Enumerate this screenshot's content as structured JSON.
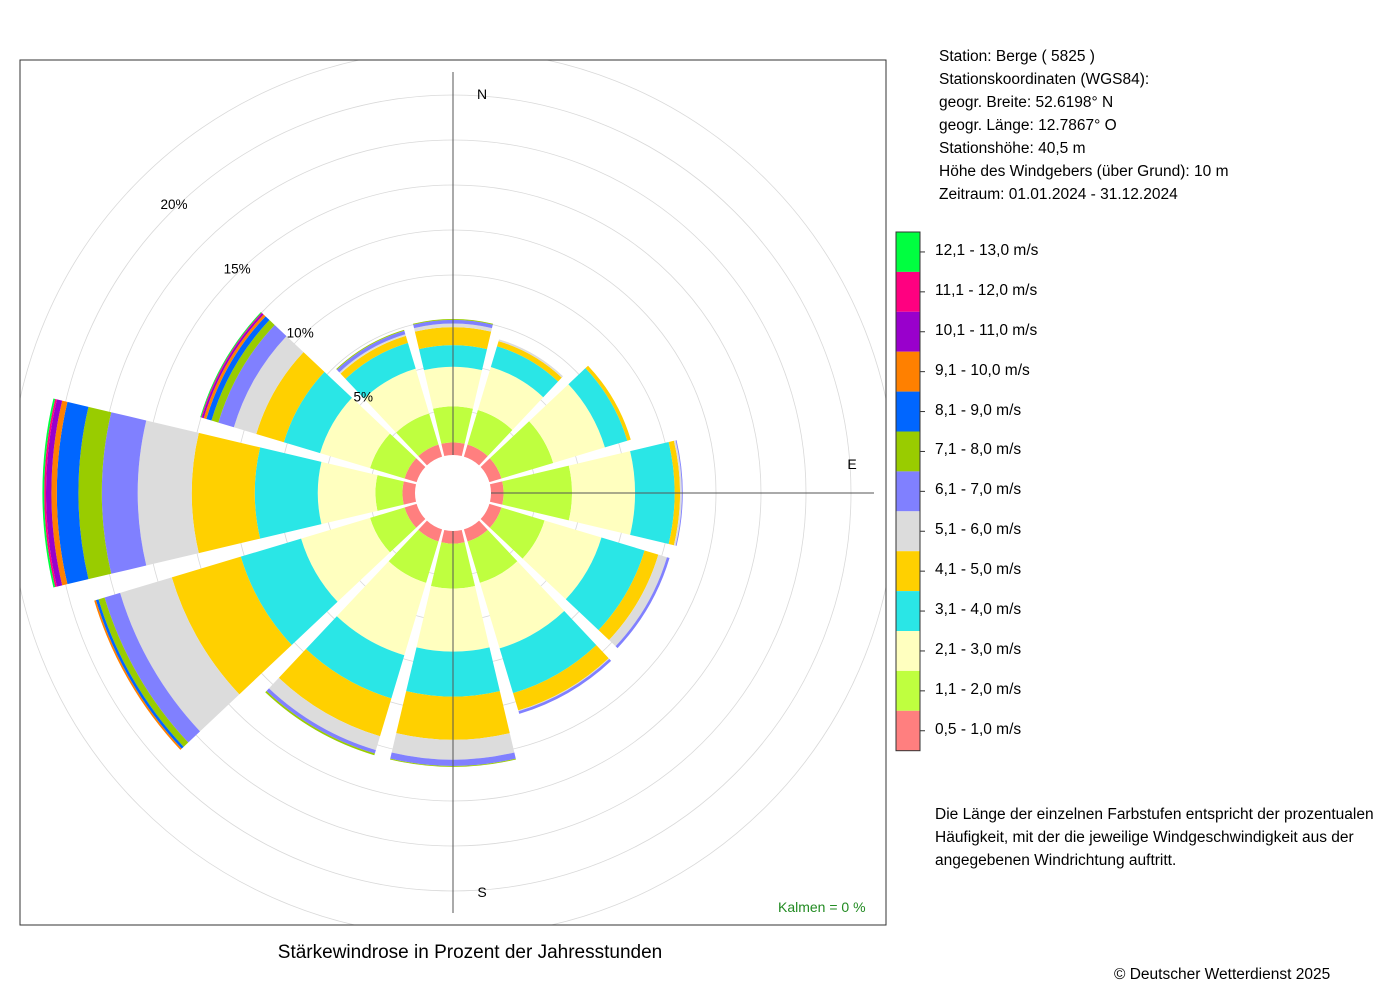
{
  "title": "Stärkewindrose in Prozent der Jahresstunden",
  "copyright": "© Deutscher Wetterdienst  2025",
  "kalmen": "Kalmen  =  0 %",
  "note": "Die Länge der einzelnen Farbstufen entspricht der prozentualen Häufigkeit, mit der die jeweilige Windgeschwindigkeit aus der angegebenen Windrichtung auftritt.",
  "station": {
    "line1": "Station:  Berge  ( 5825 )",
    "line2": "Stationskoordinaten (WGS84):",
    "line3": "geogr. Breite: 52.6198° N",
    "line4": "geogr. Länge: 12.7867° O",
    "line5": "Stationshöhe: 40,5 m",
    "line6": "Höhe des Windgebers (über Grund): 10 m",
    "line7": "Zeitraum: 01.01.2024 - 31.12.2024"
  },
  "chart_data": {
    "type": "polar-stacked-bar",
    "title": "Stärkewindrose in Prozent der Jahresstunden",
    "directions_deg": [
      0,
      30,
      60,
      90,
      120,
      150,
      180,
      210,
      240,
      270,
      300,
      330
    ],
    "compass_labels": [
      {
        "label": "N",
        "angle": 0
      },
      {
        "label": "E",
        "angle": 90
      },
      {
        "label": "S",
        "angle": 180
      }
    ],
    "radial_ticks": [
      5,
      10,
      15,
      20
    ],
    "radial_tick_labels": [
      "5%",
      "10%",
      "15%",
      "20%"
    ],
    "bins": [
      {
        "label": "0,5 - 1,0 m/s",
        "color": "#FF7F7F"
      },
      {
        "label": "1,1 - 2,0 m/s",
        "color": "#BFFF3F"
      },
      {
        "label": "2,1 - 3,0 m/s",
        "color": "#FFFFBF"
      },
      {
        "label": "3,1 - 4,0 m/s",
        "color": "#2AE6E6"
      },
      {
        "label": "4,1 - 5,0 m/s",
        "color": "#FFD000"
      },
      {
        "label": "5,1 - 6,0 m/s",
        "color": "#DCDCDC"
      },
      {
        "label": "6,1 - 7,0 m/s",
        "color": "#8080FF"
      },
      {
        "label": "7,1 - 8,0 m/s",
        "color": "#99CC00"
      },
      {
        "label": "8,1 - 9,0 m/s",
        "color": "#0066FF"
      },
      {
        "label": "9,1 - 10,0 m/s",
        "color": "#FF8000"
      },
      {
        "label": "10,1 - 11,0 m/s",
        "color": "#9900CC"
      },
      {
        "label": "11,1 - 12,0 m/s",
        "color": "#FF0080"
      },
      {
        "label": "12,1 - 13,0 m/s",
        "color": "#00FF40"
      }
    ],
    "series": [
      {
        "direction": 0,
        "values": [
          0.7,
          2.0,
          2.2,
          1.2,
          1.0,
          0.2,
          0.2,
          0.05,
          0,
          0,
          0,
          0,
          0
        ]
      },
      {
        "direction": 30,
        "values": [
          0.7,
          2.0,
          2.5,
          1.2,
          0.3,
          0.1,
          0,
          0,
          0,
          0,
          0,
          0,
          0
        ]
      },
      {
        "direction": 60,
        "values": [
          0.7,
          3.0,
          3.0,
          1.3,
          0.2,
          0,
          0,
          0,
          0,
          0,
          0,
          0,
          0
        ]
      },
      {
        "direction": 90,
        "values": [
          0.7,
          3.8,
          3.5,
          2.2,
          0.3,
          0.1,
          0.05,
          0,
          0,
          0,
          0,
          0,
          0
        ]
      },
      {
        "direction": 120,
        "values": [
          0.7,
          2.5,
          3.3,
          2.5,
          0.8,
          0.5,
          0.15,
          0,
          0,
          0,
          0,
          0,
          0
        ]
      },
      {
        "direction": 150,
        "values": [
          0.7,
          2.4,
          3.8,
          2.6,
          1.0,
          0.05,
          0.15,
          0,
          0,
          0,
          0,
          0,
          0
        ]
      },
      {
        "direction": 180,
        "values": [
          0.7,
          2.5,
          3.5,
          2.5,
          2.4,
          1.1,
          0.35,
          0.05,
          0,
          0,
          0,
          0,
          0
        ]
      },
      {
        "direction": 210,
        "values": [
          0.7,
          2.4,
          4.2,
          2.5,
          2.2,
          0.8,
          0.2,
          0.1,
          0,
          0,
          0,
          0,
          0
        ]
      },
      {
        "direction": 240,
        "values": [
          0.7,
          2.0,
          4.0,
          3.5,
          4.0,
          3.0,
          0.9,
          0.35,
          0.15,
          0.1,
          0,
          0,
          0
        ]
      },
      {
        "direction": 270,
        "values": [
          0.7,
          1.5,
          3.2,
          3.5,
          3.5,
          3.0,
          2.0,
          1.3,
          1.2,
          0.3,
          0.3,
          0.1,
          0.1
        ]
      },
      {
        "direction": 300,
        "values": [
          0.7,
          2.0,
          2.9,
          2.1,
          1.6,
          1.3,
          0.9,
          0.4,
          0.3,
          0.15,
          0.1,
          0.05,
          0.05
        ]
      },
      {
        "direction": 330,
        "values": [
          0.7,
          1.8,
          2.6,
          1.5,
          0.4,
          0.1,
          0.2,
          0.05,
          0,
          0,
          0,
          0,
          0
        ]
      }
    ],
    "calm_percent": 0
  }
}
